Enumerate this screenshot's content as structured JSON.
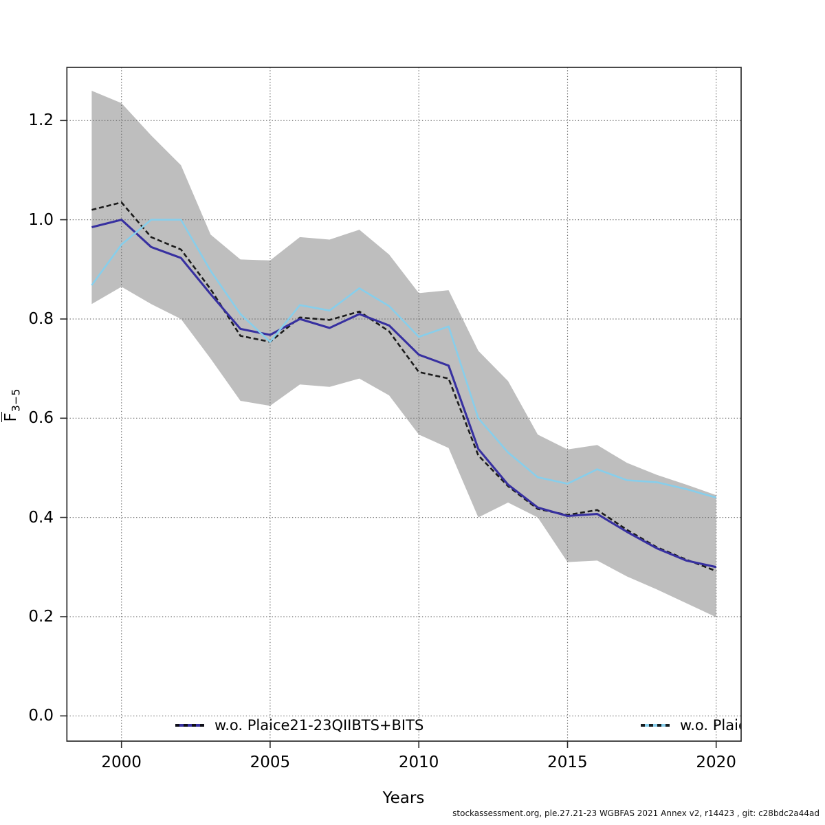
{
  "axes": {
    "xlabel": "Years",
    "ylabel": "F̄3−5",
    "ylabel_f": "F",
    "ylabel_sub": "3−5",
    "x_tick_years": [
      2000,
      2005,
      2010,
      2015,
      2020
    ],
    "x_tick_labels": [
      "2000",
      "2005",
      "2010",
      "2015",
      "2020"
    ],
    "y_ticks": [
      {
        "v": 0.0,
        "label": "0.0"
      },
      {
        "v": 0.2,
        "label": "0.2"
      },
      {
        "v": 0.4,
        "label": "0.4"
      },
      {
        "v": 0.6,
        "label": "0.6"
      },
      {
        "v": 0.8,
        "label": "0.8"
      },
      {
        "v": 1.0,
        "label": "1.0"
      },
      {
        "v": 1.2,
        "label": "1.2"
      }
    ]
  },
  "legend": {
    "left": {
      "label": "w.o. Plaice21-23QIIBTS+BITS",
      "color": "#3730a0"
    },
    "right": {
      "label": "w.o. Plaic",
      "color": "#87ceeb",
      "clipped": true
    }
  },
  "footer": {
    "text": "stockassessment.org, ple.27.21-23 WGBFAS 2021 Annex v2, r14423 , git: c28bdc2a44ad"
  },
  "colors": {
    "band": "#bebebe",
    "grid": "#6e6e6e",
    "axis": "#2a2a2a",
    "text": "#000000"
  },
  "chart_data": {
    "type": "line",
    "title": "",
    "xlabel": "Years",
    "ylabel": "F̄3−5",
    "xlim": [
      1998.2,
      2020.8
    ],
    "ylim": [
      -0.05,
      1.31
    ],
    "grid": true,
    "legend_position": "bottom-inside",
    "x": [
      1999,
      2000,
      2001,
      2002,
      2003,
      2004,
      2005,
      2006,
      2007,
      2008,
      2009,
      2010,
      2011,
      2012,
      2013,
      2014,
      2015,
      2016,
      2017,
      2018,
      2019,
      2020
    ],
    "series": [
      {
        "name": "baseline (black dashed)",
        "color": "#1b1b1b",
        "line_style": "dashed",
        "values": [
          1.02,
          1.035,
          0.965,
          0.94,
          0.86,
          0.766,
          0.754,
          0.803,
          0.798,
          0.815,
          0.775,
          0.693,
          0.68,
          0.525,
          0.463,
          0.417,
          0.405,
          0.415,
          0.375,
          0.34,
          0.315,
          0.292
        ]
      },
      {
        "name": "w.o. Plaice21-23QIIBTS+BITS",
        "color": "#3730a0",
        "line_style": "solid",
        "values": [
          0.985,
          1.0,
          0.945,
          0.923,
          0.85,
          0.78,
          0.768,
          0.8,
          0.782,
          0.81,
          0.787,
          0.728,
          0.706,
          0.538,
          0.466,
          0.42,
          0.403,
          0.407,
          0.371,
          0.338,
          0.313,
          0.3
        ]
      },
      {
        "name": "w.o. Plaic (legend clipped)",
        "color": "#87ceeb",
        "line_style": "solid",
        "values": [
          0.868,
          0.95,
          1.0,
          1.0,
          0.897,
          0.81,
          0.754,
          0.828,
          0.817,
          0.862,
          0.826,
          0.764,
          0.785,
          0.6,
          0.531,
          0.481,
          0.468,
          0.497,
          0.475,
          0.471,
          0.457,
          0.44
        ]
      }
    ],
    "band": {
      "applies_to": "baseline (black dashed)",
      "color": "#bebebe",
      "lower": [
        0.83,
        0.865,
        0.83,
        0.8,
        0.72,
        0.635,
        0.625,
        0.668,
        0.663,
        0.68,
        0.646,
        0.567,
        0.54,
        0.4,
        0.43,
        0.4,
        0.31,
        0.313,
        0.281,
        0.255,
        0.227,
        0.199
      ],
      "upper": [
        1.26,
        1.235,
        1.17,
        1.11,
        0.97,
        0.92,
        0.918,
        0.965,
        0.96,
        0.98,
        0.93,
        0.852,
        0.858,
        0.736,
        0.675,
        0.567,
        0.537,
        0.546,
        0.51,
        0.486,
        0.466,
        0.445
      ]
    }
  }
}
